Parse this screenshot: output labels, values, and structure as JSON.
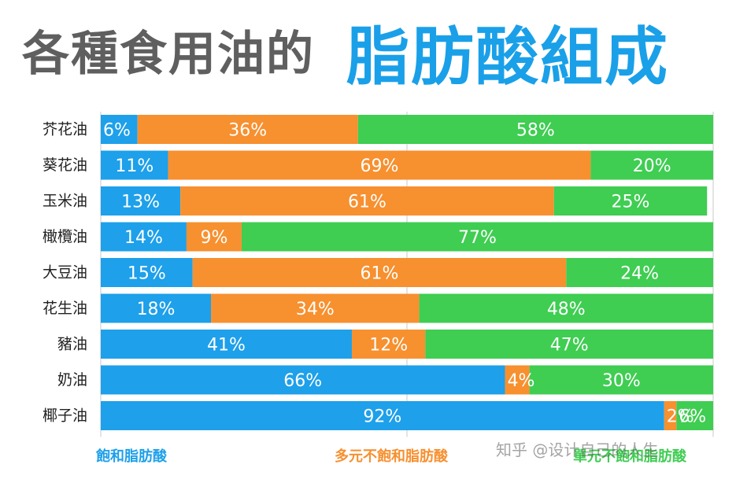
{
  "title": {
    "part1": "各種食用油的",
    "part2": "脂肪酸組成"
  },
  "colors": {
    "saturated": "#1ea0ea",
    "polyunsaturated": "#f7902f",
    "monounsaturated": "#3fcd52",
    "title_grey": "#5f5f5f",
    "title_blue": "#1aa0e8"
  },
  "legend": {
    "saturated": "飽和脂肪酸",
    "polyunsaturated": "多元不飽和脂肪酸",
    "monounsaturated": "單元不飽和脂肪酸"
  },
  "watermark": "知乎 @设计自己的人生",
  "chart_data": {
    "type": "bar",
    "orientation": "horizontal",
    "stacked": true,
    "categories": [
      "芥花油",
      "葵花油",
      "玉米油",
      "橄欖油",
      "大豆油",
      "花生油",
      "豬油",
      "奶油",
      "椰子油"
    ],
    "series": [
      {
        "name": "飽和脂肪酸",
        "values": [
          6,
          11,
          13,
          14,
          15,
          18,
          41,
          66,
          92
        ]
      },
      {
        "name": "多元不飽和脂肪酸",
        "values": [
          36,
          69,
          61,
          9,
          61,
          34,
          12,
          4,
          2
        ]
      },
      {
        "name": "單元不飽和脂肪酸",
        "values": [
          58,
          20,
          25,
          77,
          24,
          48,
          47,
          30,
          6
        ]
      }
    ],
    "data_labels": [
      [
        "6%",
        "36%",
        "58%"
      ],
      [
        "11%",
        "69%",
        "20%"
      ],
      [
        "13%",
        "61%",
        "25%"
      ],
      [
        "14%",
        "9%",
        "77%"
      ],
      [
        "15%",
        "61%",
        "24%"
      ],
      [
        "18%",
        "34%",
        "48%"
      ],
      [
        "41%",
        "12%",
        "47%"
      ],
      [
        "66%",
        "4%",
        "30%"
      ],
      [
        "92%",
        "2%",
        "6%"
      ]
    ],
    "xlim": [
      0,
      100
    ],
    "legend_position": "bottom",
    "grid": true
  }
}
